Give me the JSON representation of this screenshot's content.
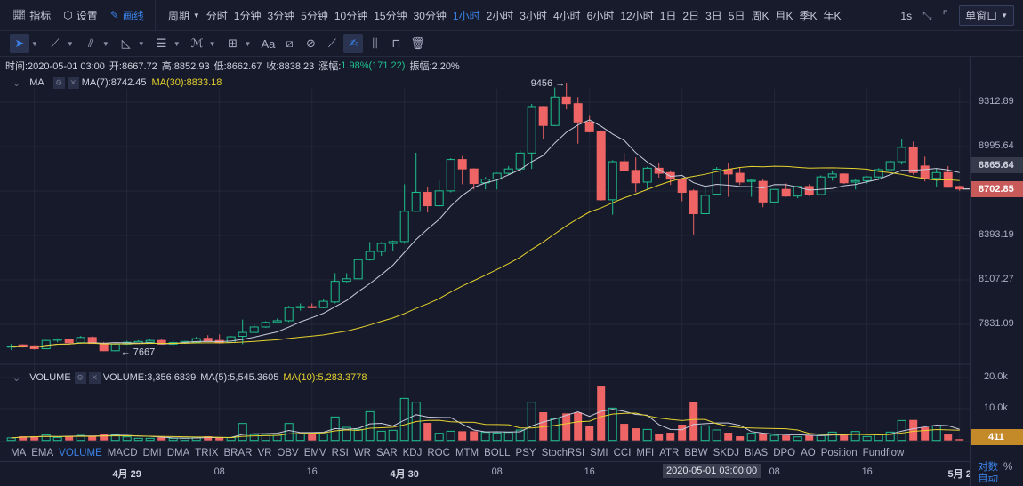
{
  "header": {
    "indicators_label": "指标",
    "settings_label": "设置",
    "draw_label": "画线",
    "period_label": "周期",
    "intervals": [
      "分时",
      "1分钟",
      "3分钟",
      "5分钟",
      "10分钟",
      "15分钟",
      "30分钟",
      "1小时",
      "2小时",
      "3小时",
      "4小时",
      "6小时",
      "12小时",
      "1日",
      "2日",
      "3日",
      "5日",
      "周K",
      "月K",
      "季K",
      "年K"
    ],
    "active_interval": "1小时",
    "refresh_label": "1s",
    "window_mode": "单窗口"
  },
  "toolbar": {
    "text_tool": "Aa",
    "tools": [
      "cursor",
      "line",
      "parallel-channel",
      "angle",
      "horizontal-lines",
      "fibonacci",
      "rectangle",
      "text",
      "measure",
      "magnet",
      "ruler",
      "draw-mode",
      "lock-drawing",
      "unlock",
      "delete"
    ]
  },
  "info": {
    "time": "时间:2020-05-01 03:00",
    "open": "开:8667.72",
    "high": "高:8852.93",
    "low": "低:8662.67",
    "close": "收:8838.23",
    "change_label": "涨幅:",
    "change": "1.98%(171.22)",
    "amplitude": "振幅:2.20%"
  },
  "ma_legend": {
    "name": "MA",
    "ma7": "MA(7):8742.45",
    "ma30": "MA(30):8833.18"
  },
  "vol_legend": {
    "name": "VOLUME",
    "volume": "VOLUME:3,356.6839",
    "ma5": "MA(5):5,545.3605",
    "ma10": "MA(10):5,283.3778"
  },
  "indicator_tabs": [
    "MA",
    "EMA",
    "VOLUME",
    "MACD",
    "DMI",
    "DMA",
    "TRIX",
    "BRAR",
    "VR",
    "OBV",
    "EMV",
    "RSI",
    "WR",
    "SAR",
    "KDJ",
    "ROC",
    "MTM",
    "BOLL",
    "PSY",
    "StochRSI",
    "SMI",
    "CCI",
    "MFI",
    "ATR",
    "BBW",
    "SKDJ",
    "BIAS",
    "DPO",
    "AO",
    "Position",
    "Fundflow"
  ],
  "active_tab": "VOLUME",
  "price_axis": {
    "labels": [
      "9312.89",
      "8995.64",
      "8393.19",
      "8107.27",
      "7831.09"
    ],
    "crosshair_price": "8865.64",
    "last_price": "8702.85",
    "scale": "log"
  },
  "volume_axis": {
    "labels": [
      "20.0k",
      "10.0k"
    ],
    "last_volume": "411"
  },
  "time_axis": {
    "ticks": [
      {
        "i": 10,
        "label": "4月 29",
        "bold": true
      },
      {
        "i": 18,
        "label": "08"
      },
      {
        "i": 26,
        "label": "16"
      },
      {
        "i": 34,
        "label": "4月 30",
        "bold": true
      },
      {
        "i": 42,
        "label": "08"
      },
      {
        "i": 50,
        "label": "16"
      },
      {
        "i": 66,
        "label": "08"
      },
      {
        "i": 74,
        "label": "16"
      },
      {
        "i": 82,
        "label": "5月 2",
        "bold": true
      }
    ],
    "hover_time": "2020-05-01 03:00:00"
  },
  "bottom_right": {
    "log_label": "对数",
    "percent_label": "%",
    "auto_label": "自动"
  },
  "annotations": {
    "high": "9456",
    "low": "7667"
  },
  "colors": {
    "up": "#1fc08e",
    "down": "#ef6464",
    "ma7": "#c8cbdc",
    "ma30": "#e6d22e",
    "accent": "#3b82e6",
    "volume_badge": "#c48a2a",
    "last_badge": "#c85a5a"
  },
  "chart_data": {
    "type": "candlestick",
    "interval": "1小时",
    "columns": [
      "open",
      "high",
      "low",
      "close",
      "volume"
    ],
    "ma_periods": [
      7,
      30
    ],
    "volume_ma_periods": [
      5,
      10
    ],
    "candles": [
      [
        7695,
        7712,
        7675,
        7699,
        800
      ],
      [
        7706,
        7710,
        7690,
        7694,
        1333
      ],
      [
        7700,
        7704,
        7678,
        7683,
        1333
      ],
      [
        7683,
        7737,
        7680,
        7733,
        1810
      ],
      [
        7735,
        7746,
        7722,
        7741,
        950
      ],
      [
        7741,
        7744,
        7716,
        7719,
        1333
      ],
      [
        7719,
        7760,
        7714,
        7751,
        1620
      ],
      [
        7751,
        7757,
        7712,
        7715,
        1333
      ],
      [
        7715,
        7724,
        7669,
        7671,
        2190
      ],
      [
        7671,
        7713,
        7667,
        7711,
        1810
      ],
      [
        7711,
        7731,
        7706,
        7722,
        1140
      ],
      [
        7717,
        7735,
        7712,
        7727,
        670
      ],
      [
        7722,
        7740,
        7718,
        7733,
        670
      ],
      [
        7733,
        7740,
        7708,
        7711,
        950
      ],
      [
        7711,
        7733,
        7700,
        7720,
        670
      ],
      [
        7717,
        7730,
        7712,
        7727,
        670
      ],
      [
        7721,
        7755,
        7718,
        7744,
        860
      ],
      [
        7746,
        7765,
        7726,
        7729,
        1333
      ],
      [
        7733,
        7770,
        7714,
        7719,
        950
      ],
      [
        7721,
        7760,
        7718,
        7755,
        950
      ],
      [
        7758,
        7860,
        7710,
        7782,
        5430
      ],
      [
        7782,
        7830,
        7778,
        7815,
        1900
      ],
      [
        7815,
        7850,
        7810,
        7843,
        1620
      ],
      [
        7843,
        7867,
        7838,
        7853,
        1620
      ],
      [
        7853,
        7945,
        7845,
        7934,
        5430
      ],
      [
        7934,
        7960,
        7915,
        7940,
        2100
      ],
      [
        7940,
        7960,
        7930,
        7934,
        1900
      ],
      [
        7934,
        7985,
        7930,
        7973,
        2100
      ],
      [
        7969,
        8150,
        7960,
        8098,
        7520
      ],
      [
        8098,
        8150,
        8092,
        8114,
        4190
      ],
      [
        8114,
        8240,
        8110,
        8236,
        3520
      ],
      [
        8236,
        8350,
        8230,
        8289,
        9240
      ],
      [
        8289,
        8350,
        8260,
        8341,
        2950
      ],
      [
        8341,
        8360,
        8290,
        8353,
        3240
      ],
      [
        8353,
        8735,
        8340,
        8553,
        13520
      ],
      [
        8553,
        8952,
        8550,
        8680,
        12290
      ],
      [
        8680,
        8720,
        8545,
        8590,
        5620
      ],
      [
        8590,
        8760,
        8585,
        8690,
        2290
      ],
      [
        8690,
        8915,
        8680,
        8905,
        2950
      ],
      [
        8905,
        8930,
        8735,
        8840,
        2950
      ],
      [
        8840,
        8845,
        8700,
        8740,
        2950
      ],
      [
        8745,
        8785,
        8700,
        8770,
        2570
      ],
      [
        8770,
        8815,
        8700,
        8810,
        2380
      ],
      [
        8810,
        8860,
        8800,
        8840,
        2570
      ],
      [
        8840,
        8970,
        8810,
        8950,
        3330
      ],
      [
        8950,
        9300,
        8840,
        9281,
        12290
      ],
      [
        9281,
        9285,
        9048,
        9145,
        9050
      ],
      [
        9145,
        9420,
        9140,
        9350,
        7050
      ],
      [
        9350,
        9456,
        9260,
        9302,
        8670
      ],
      [
        9302,
        9350,
        9016,
        9170,
        8950
      ],
      [
        9170,
        9220,
        9095,
        9100,
        4760
      ],
      [
        9100,
        9110,
        8625,
        8630,
        17330
      ],
      [
        8630,
        8900,
        8530,
        8890,
        10380
      ],
      [
        8890,
        8950,
        8825,
        8830,
        5330
      ],
      [
        8830,
        8920,
        8680,
        8745,
        3900
      ],
      [
        8750,
        8855,
        8700,
        8845,
        3520
      ],
      [
        8845,
        8880,
        8780,
        8810,
        2190
      ],
      [
        8815,
        8830,
        8730,
        8770,
        2480
      ],
      [
        8770,
        8775,
        8620,
        8680,
        5050
      ],
      [
        8690,
        8700,
        8400,
        8537,
        12480
      ],
      [
        8537,
        8720,
        8530,
        8660,
        4670
      ],
      [
        8667.72,
        8852.93,
        8662.67,
        8838.23,
        3356.68
      ],
      [
        8835,
        8880,
        8650,
        8805,
        2480
      ],
      [
        8810,
        8850,
        8730,
        8750,
        1330
      ],
      [
        8755,
        8770,
        8650,
        8762,
        2290
      ],
      [
        8755,
        8770,
        8580,
        8615,
        2290
      ],
      [
        8615,
        8700,
        8610,
        8700,
        1620
      ],
      [
        8700,
        8740,
        8650,
        8655,
        1620
      ],
      [
        8655,
        8725,
        8640,
        8720,
        1140
      ],
      [
        8720,
        8735,
        8655,
        8665,
        1620
      ],
      [
        8665,
        8795,
        8660,
        8785,
        1620
      ],
      [
        8785,
        8830,
        8760,
        8805,
        2670
      ],
      [
        8805,
        8810,
        8738,
        8745,
        1620
      ],
      [
        8750,
        8770,
        8700,
        8760,
        2860
      ],
      [
        8760,
        8790,
        8740,
        8785,
        1240
      ],
      [
        8785,
        8845,
        8770,
        8835,
        1810
      ],
      [
        8835,
        8900,
        8830,
        8890,
        2670
      ],
      [
        8890,
        9050,
        8870,
        8990,
        6380
      ],
      [
        8990,
        9030,
        8800,
        8815,
        6570
      ],
      [
        8860,
        8925,
        8755,
        8775,
        4190
      ],
      [
        8775,
        8845,
        8715,
        8815,
        4670
      ],
      [
        8815,
        8860,
        8710,
        8715,
        1900
      ],
      [
        8720,
        8725,
        8690,
        8702.85,
        411
      ]
    ]
  }
}
